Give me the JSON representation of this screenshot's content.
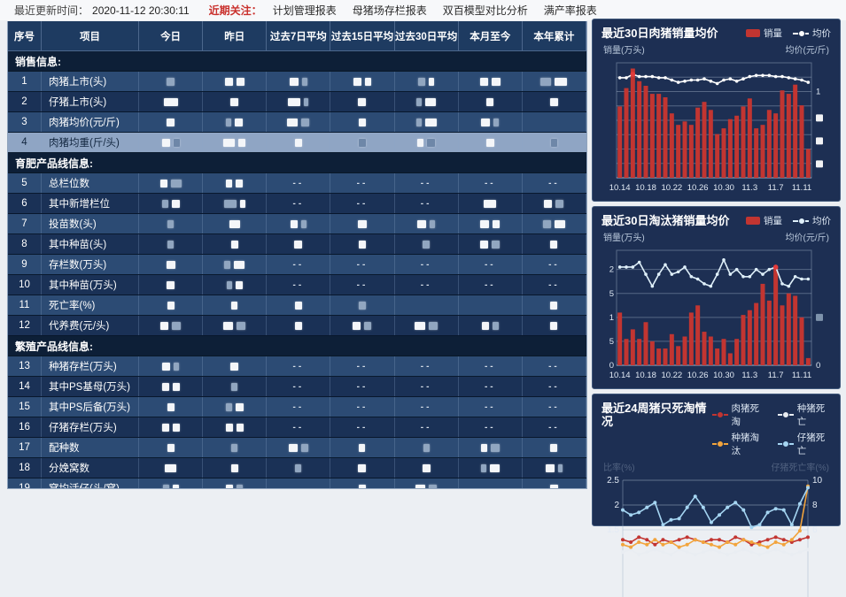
{
  "topbar": {
    "updated_label": "最近更新时间：",
    "updated_time": "2020-11-12 20:30:11",
    "focus_label": "近期关注：",
    "links": [
      "计划管理报表",
      "母猪场存栏报表",
      "双百模型对比分析",
      "满产率报表"
    ]
  },
  "table": {
    "headers": [
      "序号",
      "项目",
      "今日",
      "昨日",
      "过去7日平均",
      "过去15日平均",
      "过去30日平均",
      "本月至今",
      "本年累计"
    ],
    "redacted_cell_note": "--",
    "sections": [
      {
        "label": "销售信息:",
        "rows": [
          {
            "no": "1",
            "name": "肉猪上市(头)",
            "cells": [
              [
                -9
              ],
              [
                9,
                9
              ],
              [
                10,
                -6
              ],
              [
                9,
                7
              ],
              [
                -8,
                6
              ],
              [
                9,
                10
              ],
              [
                -12,
                14
              ]
            ]
          },
          {
            "no": "2",
            "name": "仔猪上市(头)",
            "cells": [
              [
                16
              ],
              [
                9
              ],
              [
                14,
                -5
              ],
              [
                9
              ],
              [
                -6,
                12
              ],
              [
                8
              ],
              [
                9
              ]
            ]
          },
          {
            "no": "3",
            "name": "肉猪均价(元/斤)",
            "cells": [
              [
                9
              ],
              [
                -6,
                9
              ],
              [
                12,
                -9
              ],
              [
                8
              ],
              [
                -6,
                13
              ],
              [
                10,
                -6
              ],
              null
            ]
          },
          {
            "no": "4",
            "name": "肉猪均重(斤/头)",
            "highlight": true,
            "cells": [
              [
                9,
                -7
              ],
              [
                13,
                8
              ],
              [
                8
              ],
              [
                -8
              ],
              [
                7,
                -9
              ],
              [
                9
              ],
              [
                -7
              ]
            ]
          }
        ]
      },
      {
        "label": "育肥产品线信息:",
        "rows": [
          {
            "no": "5",
            "name": "总栏位数",
            "cells": [
              [
                8,
                -12
              ],
              [
                7,
                8
              ],
              "--",
              "--",
              "--",
              "--",
              "--"
            ]
          },
          {
            "no": "6",
            "name": "其中新增栏位",
            "cells": [
              [
                -7,
                9
              ],
              [
                -14,
                6
              ],
              "--",
              "--",
              "--",
              [
                14
              ],
              [
                9,
                -9
              ]
            ]
          },
          {
            "no": "7",
            "name": "投苗数(头)",
            "cells": [
              [
                -7
              ],
              [
                12
              ],
              [
                8,
                -6
              ],
              [
                10
              ],
              [
                10,
                -6
              ],
              [
                10,
                8
              ],
              [
                -9,
                12
              ]
            ]
          },
          {
            "no": "8",
            "name": "其中种苗(头)",
            "cells": [
              [
                -7
              ],
              [
                8
              ],
              [
                9
              ],
              [
                8
              ],
              [
                -8
              ],
              [
                9,
                -9
              ],
              [
                8
              ]
            ]
          },
          {
            "no": "9",
            "name": "存栏数(万头)",
            "cells": [
              [
                10
              ],
              [
                -7,
                12
              ],
              "--",
              "--",
              "--",
              "--",
              "--"
            ]
          },
          {
            "no": "10",
            "name": "其中种苗(万头)",
            "cells": [
              [
                9
              ],
              [
                -6,
                8
              ],
              "--",
              "--",
              "--",
              "--",
              "--"
            ]
          },
          {
            "no": "11",
            "name": "死亡率(%)",
            "cells": [
              [
                8
              ],
              [
                7
              ],
              [
                8
              ],
              [
                -8
              ],
              null,
              null,
              [
                8
              ]
            ]
          },
          {
            "no": "12",
            "name": "代养费(元/头)",
            "cells": [
              [
                9,
                -10
              ],
              [
                11,
                -10
              ],
              [
                8
              ],
              [
                9,
                -8
              ],
              [
                12,
                -10
              ],
              [
                8,
                -7
              ],
              [
                8
              ]
            ]
          }
        ]
      },
      {
        "label": "繁殖产品线信息:",
        "rows": [
          {
            "no": "13",
            "name": "种猪存栏(万头)",
            "cells": [
              [
                9,
                -6
              ],
              [
                9
              ],
              "--",
              "--",
              "--",
              "--",
              "--"
            ]
          },
          {
            "no": "14",
            "name": "其中PS基母(万头)",
            "cells": [
              [
                8,
                8
              ],
              [
                -7
              ],
              "--",
              "--",
              "--",
              "--",
              "--"
            ]
          },
          {
            "no": "15",
            "name": "其中PS后备(万头)",
            "cells": [
              [
                8
              ],
              [
                -7,
                9
              ],
              "--",
              "--",
              "--",
              "--",
              "--"
            ]
          },
          {
            "no": "16",
            "name": "仔猪存栏(万头)",
            "cells": [
              [
                8,
                8
              ],
              [
                8,
                8
              ],
              "--",
              "--",
              "--",
              "--",
              "--"
            ]
          },
          {
            "no": "17",
            "name": "配种数",
            "cells": [
              [
                8
              ],
              [
                -7
              ],
              [
                10,
                -8
              ],
              [
                7
              ],
              [
                -7
              ],
              [
                7,
                -10
              ],
              [
                8
              ]
            ]
          },
          {
            "no": "18",
            "name": "分娩窝数",
            "cells": [
              [
                13
              ],
              [
                8
              ],
              [
                -7
              ],
              [
                9
              ],
              [
                9
              ],
              [
                -6,
                11
              ],
              [
                10,
                -5
              ]
            ]
          },
          {
            "no": "19",
            "name": "窝均活仔(头/窝)",
            "cells": [
              [
                -7,
                7
              ],
              [
                8,
                -7
              ],
              null,
              [
                8
              ],
              [
                11,
                -9
              ],
              null,
              [
                9
              ]
            ]
          }
        ]
      }
    ]
  },
  "chart_data": [
    {
      "type": "bar",
      "subtype": "bar+line",
      "title": "最近30日肉猪销量均价",
      "legend": [
        {
          "label": "销量",
          "marker": "bar",
          "color": "#c23531"
        },
        {
          "label": "均价",
          "marker": "line",
          "color": "#ffffff"
        }
      ],
      "y_left_label": "销量(万头)",
      "y_right_label": "均价(元/斤)",
      "x_labels": [
        "10.14",
        "10.18",
        "10.22",
        "10.26",
        "10.30",
        "11.3",
        "11.7",
        "11.11"
      ],
      "x_label_every": 4,
      "ymax": 1,
      "axis_values_redacted": true,
      "bars": [
        0.62,
        0.78,
        0.95,
        0.84,
        0.8,
        0.73,
        0.73,
        0.7,
        0.56,
        0.46,
        0.49,
        0.46,
        0.61,
        0.66,
        0.59,
        0.38,
        0.43,
        0.51,
        0.54,
        0.62,
        0.69,
        0.43,
        0.46,
        0.59,
        0.56,
        0.76,
        0.73,
        0.81,
        0.63,
        0.25
      ],
      "line": [
        0.87,
        0.87,
        0.9,
        0.88,
        0.88,
        0.88,
        0.87,
        0.87,
        0.85,
        0.83,
        0.84,
        0.85,
        0.85,
        0.86,
        0.84,
        0.82,
        0.85,
        0.86,
        0.84,
        0.86,
        0.88,
        0.89,
        0.89,
        0.89,
        0.88,
        0.88,
        0.87,
        0.86,
        0.85,
        0.83
      ],
      "line_highlight_index": 2,
      "gridlines": [
        0.125,
        0.25,
        0.375,
        0.5,
        0.625,
        0.75,
        0.875
      ],
      "left_ticks": [],
      "right_ticks": [
        {
          "label": "1",
          "v": 0.75
        },
        {
          "label": "R",
          "v": 0.52
        },
        {
          "label": "R",
          "v": 0.32
        },
        {
          "label": "R",
          "v": 0.12
        }
      ],
      "bar_color": "#c23531",
      "line_color": "#ffffff",
      "redact_color": "#f2f3f5"
    },
    {
      "type": "bar",
      "subtype": "bar+line",
      "title": "最近30日淘汰猪销量均价",
      "legend": [
        {
          "label": "销量",
          "marker": "bar",
          "color": "#c23531"
        },
        {
          "label": "均价",
          "marker": "line",
          "color": "#dff0fa"
        }
      ],
      "y_left_label": "销量(万头)",
      "y_right_label": "均价(元/斤)",
      "x_labels": [
        "10.14",
        "10.18",
        "10.22",
        "10.26",
        "10.30",
        "11.3",
        "11.7",
        "11.11"
      ],
      "x_label_every": 4,
      "ymax": 2.4,
      "bars": [
        1.1,
        0.55,
        0.75,
        0.55,
        0.9,
        0.5,
        0.35,
        0.35,
        0.65,
        0.4,
        0.6,
        1.1,
        1.25,
        0.7,
        0.6,
        0.35,
        0.55,
        0.25,
        0.55,
        1.05,
        1.15,
        1.3,
        1.7,
        1.35,
        2.05,
        1.25,
        1.5,
        1.45,
        1.0,
        0.15
      ],
      "line": [
        2.05,
        2.05,
        2.05,
        2.15,
        1.9,
        1.65,
        1.9,
        2.1,
        1.9,
        1.95,
        2.05,
        1.85,
        1.8,
        1.7,
        1.65,
        1.9,
        2.2,
        1.9,
        2.0,
        1.85,
        1.85,
        2.0,
        1.9,
        2.0,
        2.05,
        1.7,
        1.65,
        1.85,
        1.8,
        1.8
      ],
      "line_highlight_index": 24,
      "gridlines": [
        0.5,
        1,
        1.5,
        2
      ],
      "left_ticks": [
        {
          "label": "2",
          "v": 2
        },
        {
          "label": "5",
          "v": 1.5
        },
        {
          "label": "1",
          "v": 1
        },
        {
          "label": "5",
          "v": 0.5
        },
        {
          "label": "0",
          "v": 0
        }
      ],
      "right_ticks": [
        {
          "label": "R",
          "v": 1
        },
        {
          "label": "0",
          "v": 0
        }
      ],
      "bar_color": "#c23531",
      "line_color": "#dff0fa",
      "redact_color": "#7e93ac"
    },
    {
      "type": "line",
      "subtype": "multi-line",
      "title": "最近24周猪只死淘情况",
      "legend": [
        {
          "label": "肉猪死淘",
          "marker": "line",
          "color": "#c23531"
        },
        {
          "label": "种猪死亡",
          "marker": "line",
          "color": "#e9edf2"
        },
        {
          "label": "种猪淘汰",
          "marker": "line",
          "color": "#f2a43c"
        },
        {
          "label": "仔猪死亡",
          "marker": "line",
          "color": "#a5d5f2"
        }
      ],
      "y_left_label": "比率(%)",
      "y_right_label": "仔猪死亡率(%)",
      "axis_labels_dimmed": true,
      "n_weeks": 24,
      "left_ticks": [
        {
          "label": "2.5",
          "v": 2.5
        },
        {
          "label": "2",
          "v": 2
        },
        {
          "label": "1.5",
          "v": 1.5
        }
      ],
      "right_ticks": [
        {
          "label": "10",
          "v": 10
        },
        {
          "label": "8",
          "v": 8
        },
        {
          "label": "6",
          "v": 6
        }
      ],
      "series": [
        {
          "name": "肉猪死淘",
          "axis": "left",
          "color": "#c23531",
          "values": [
            1.3,
            1.25,
            1.35,
            1.3,
            1.2,
            1.3,
            1.25,
            1.3,
            1.35,
            1.3,
            1.25,
            1.3,
            1.3,
            1.25,
            1.35,
            1.3,
            1.2,
            1.25,
            1.3,
            1.35,
            1.3,
            1.25,
            1.3,
            1.35
          ]
        },
        {
          "name": "种猪死亡",
          "axis": "left",
          "color": "#e9edf2",
          "values": [
            1.05,
            1.1,
            1.0,
            1.05,
            1.1,
            1.05,
            1.0,
            1.1,
            1.05,
            1.0,
            1.05,
            1.1,
            1.05,
            1.0,
            1.05,
            1.1,
            1.05,
            1.0,
            1.05,
            1.1,
            1.05,
            1.0,
            1.05,
            1.1
          ]
        },
        {
          "name": "种猪淘汰",
          "axis": "left",
          "color": "#f2a43c",
          "values": [
            1.2,
            1.15,
            1.25,
            1.2,
            1.3,
            1.2,
            1.25,
            1.15,
            1.2,
            1.3,
            1.25,
            1.2,
            1.15,
            1.25,
            1.2,
            1.3,
            1.25,
            1.2,
            1.15,
            1.25,
            1.2,
            1.3,
            1.48,
            2.38
          ]
        },
        {
          "name": "仔猪死亡",
          "axis": "right",
          "color": "#a5d5f2",
          "values": [
            7.6,
            7.2,
            7.4,
            7.8,
            8.2,
            6.4,
            6.8,
            6.9,
            7.8,
            8.7,
            7.8,
            6.6,
            7.2,
            7.8,
            8.2,
            7.6,
            6.2,
            6.4,
            7.4,
            7.7,
            7.6,
            6.4,
            8.1,
            9.4
          ]
        }
      ]
    }
  ]
}
